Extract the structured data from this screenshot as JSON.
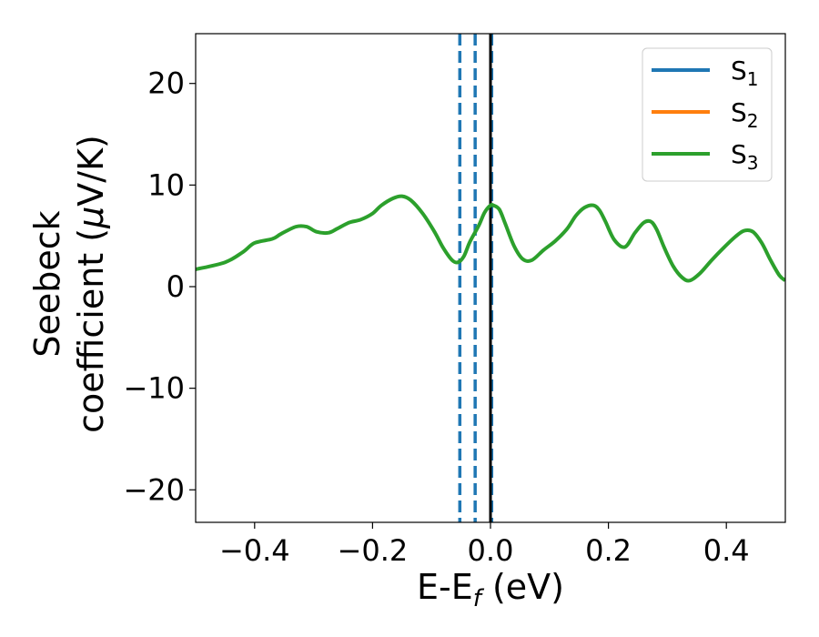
{
  "chart_data": {
    "type": "line",
    "xlabel_main": "E-E",
    "xlabel_sub": "f",
    "xlabel_unit": " (eV)",
    "ylabel_line1": "Seebeck",
    "ylabel_line2_text": "coefficient  (",
    "ylabel_mu": "μ",
    "ylabel_line2_unit": "V/K)",
    "xlim": [
      -0.5,
      0.5
    ],
    "ylim": [
      -23.2,
      24.9
    ],
    "xticks": [
      -0.4,
      -0.2,
      0.0,
      0.2,
      0.4
    ],
    "xtick_labels": [
      "−0.4",
      "−0.2",
      "0.0",
      "0.2",
      "0.4"
    ],
    "yticks": [
      -20,
      -10,
      0,
      10,
      20
    ],
    "ytick_labels": [
      "−20",
      "−10",
      "0",
      "10",
      "20"
    ],
    "grid": false,
    "legend_position": "top-right",
    "series": [
      {
        "name": "S",
        "sub": "1",
        "color": "#1f77b4"
      },
      {
        "name": "S",
        "sub": "2",
        "color": "#ff7f0e"
      },
      {
        "name": "S",
        "sub": "3",
        "color": "#2ca02c",
        "x": [
          -0.5,
          -0.45,
          -0.42,
          -0.4,
          -0.37,
          -0.355,
          -0.33,
          -0.312,
          -0.295,
          -0.275,
          -0.26,
          -0.24,
          -0.22,
          -0.2,
          -0.185,
          -0.165,
          -0.15,
          -0.135,
          -0.115,
          -0.095,
          -0.08,
          -0.065,
          -0.055,
          -0.045,
          -0.035,
          -0.02,
          -0.01,
          0.0,
          0.005,
          0.015,
          0.025,
          0.04,
          0.055,
          0.07,
          0.09,
          0.11,
          0.13,
          0.145,
          0.16,
          0.175,
          0.185,
          0.195,
          0.21,
          0.228,
          0.245,
          0.26,
          0.272,
          0.282,
          0.295,
          0.31,
          0.325,
          0.338,
          0.355,
          0.375,
          0.395,
          0.415,
          0.43,
          0.445,
          0.46,
          0.475,
          0.49,
          0.5
        ],
        "y": [
          1.7,
          2.4,
          3.4,
          4.3,
          4.7,
          5.2,
          5.9,
          5.9,
          5.4,
          5.3,
          5.7,
          6.3,
          6.6,
          7.2,
          8.0,
          8.7,
          8.9,
          8.5,
          7.2,
          5.4,
          3.8,
          2.6,
          2.4,
          3.0,
          4.4,
          6.0,
          7.3,
          8.0,
          8.0,
          7.6,
          6.2,
          4.0,
          2.7,
          2.6,
          3.6,
          4.5,
          5.7,
          7.0,
          7.8,
          8.0,
          7.5,
          6.4,
          4.6,
          3.9,
          5.3,
          6.3,
          6.4,
          5.6,
          3.8,
          2.0,
          0.9,
          0.6,
          1.3,
          2.6,
          3.8,
          4.9,
          5.5,
          5.4,
          4.3,
          2.6,
          1.1,
          0.6
        ]
      }
    ],
    "vlines": [
      {
        "x": -0.052,
        "color": "#1f77b4",
        "style": "dashed"
      },
      {
        "x": -0.026,
        "color": "#1f77b4",
        "style": "dashed"
      },
      {
        "x": 0.002,
        "color": "#1f77b4",
        "style": "dashed"
      },
      {
        "x": 0.0,
        "color": "#000000",
        "style": "solid"
      }
    ]
  }
}
